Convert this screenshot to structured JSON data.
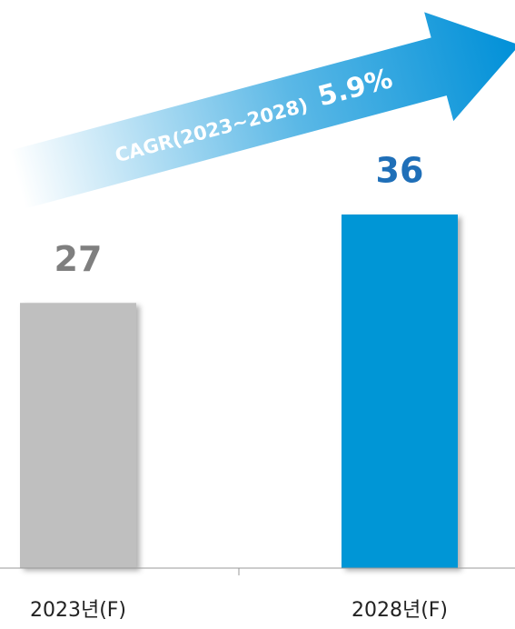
{
  "chart_data": {
    "type": "bar",
    "categories": [
      "2023년(F)",
      "2028년(F)"
    ],
    "values": [
      27,
      36
    ],
    "colors": [
      "#bfbfbf",
      "#0096d6"
    ],
    "label_colors": [
      "#7f7f7f",
      "#1f6fb8"
    ],
    "annotation": {
      "label": "CAGR(2023~2028)",
      "value": "5.9%"
    }
  }
}
